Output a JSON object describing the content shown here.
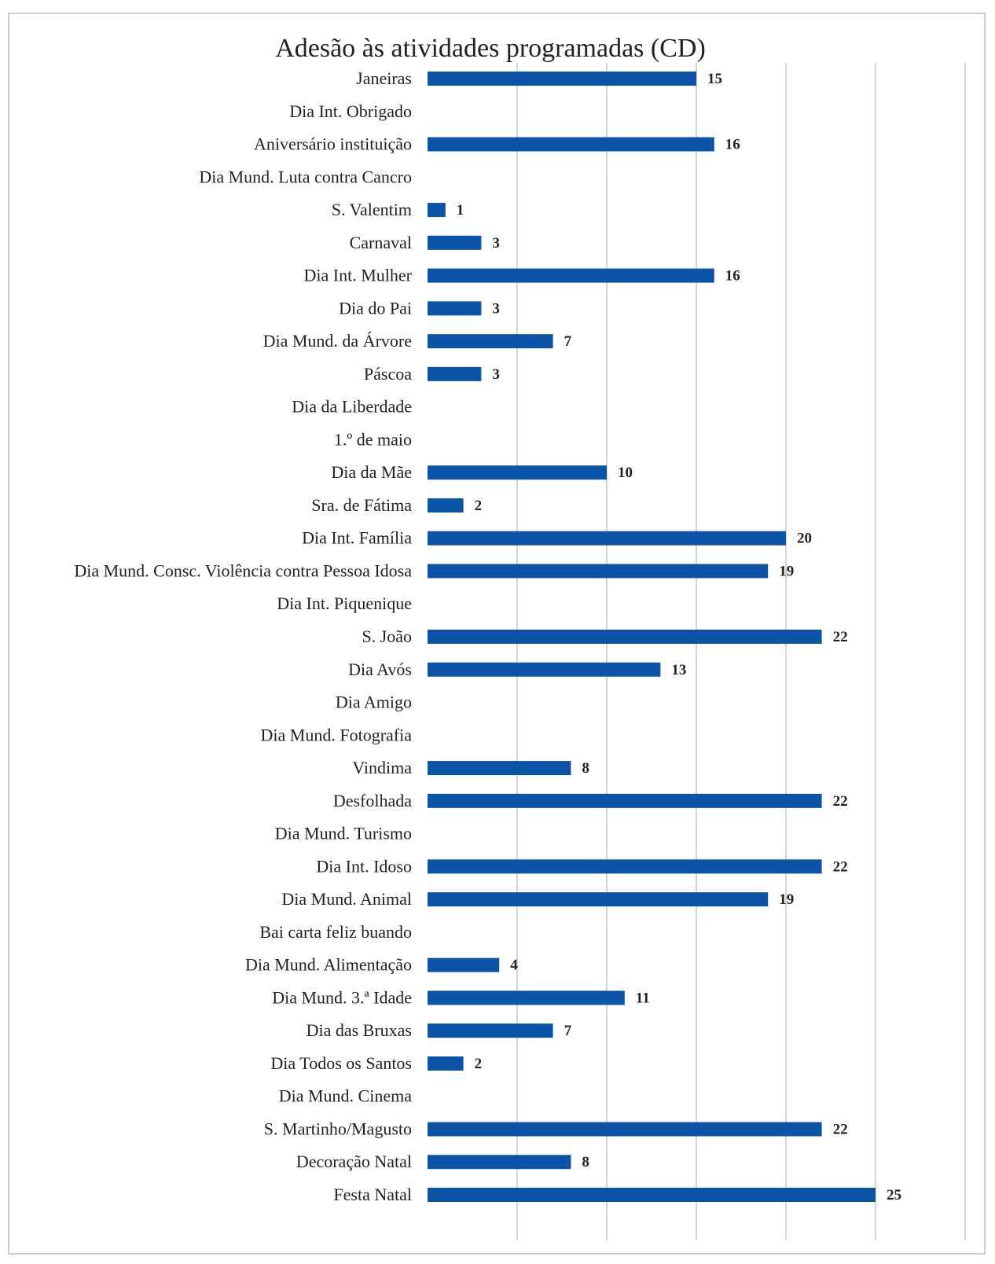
{
  "colors": {
    "bar": "#0c54a7",
    "grid": "#b9c8dc",
    "text": "#222222"
  },
  "chart_data": {
    "type": "bar",
    "orientation": "horizontal",
    "title": "Adesão às atividades programadas (CD)",
    "xlabel": "",
    "ylabel": "",
    "xlim": [
      0,
      30
    ],
    "grid": true,
    "legend": "none",
    "categories": [
      "Janeiras",
      "Dia Int. Obrigado",
      "Aniversário instituição",
      "Dia Mund. Luta contra Cancro",
      "S. Valentim",
      "Carnaval",
      "Dia Int. Mulher",
      "Dia do Pai",
      "Dia Mund. da Árvore",
      "Páscoa",
      "Dia da Liberdade",
      "1.º de maio",
      "Dia da Mãe",
      "Sra. de Fátima",
      "Dia Int. Família",
      "Dia Mund. Consc. Violência contra Pessoa Idosa",
      "Dia Int. Piquenique",
      "S. João",
      "Dia Avós",
      "Dia Amigo",
      "Dia Mund. Fotografia",
      "Vindima",
      "Desfolhada",
      "Dia Mund. Turismo",
      "Dia Int. Idoso",
      "Dia Mund. Animal",
      "Bai carta feliz buando",
      "Dia Mund. Alimentação",
      "Dia Mund. 3.ª Idade",
      "Dia das Bruxas",
      "Dia Todos os Santos",
      "Dia Mund. Cinema",
      "S. Martinho/Magusto",
      "Decoração Natal",
      "Festa Natal"
    ],
    "values": [
      15,
      null,
      16,
      null,
      1,
      3,
      16,
      3,
      7,
      3,
      null,
      null,
      10,
      2,
      20,
      19,
      null,
      22,
      13,
      null,
      null,
      8,
      22,
      null,
      22,
      19,
      null,
      4,
      11,
      7,
      2,
      null,
      22,
      8,
      25
    ],
    "data_labels": [
      "15",
      "",
      "16",
      "",
      "1",
      "3",
      "16",
      "3",
      "7",
      "3",
      "",
      "",
      "10",
      "2",
      "20",
      "19",
      "",
      "22",
      "13",
      "",
      "",
      "8",
      "22",
      "",
      "22",
      "19",
      "",
      "4",
      "11",
      "7",
      "2",
      "",
      "22",
      "8",
      "25"
    ]
  }
}
